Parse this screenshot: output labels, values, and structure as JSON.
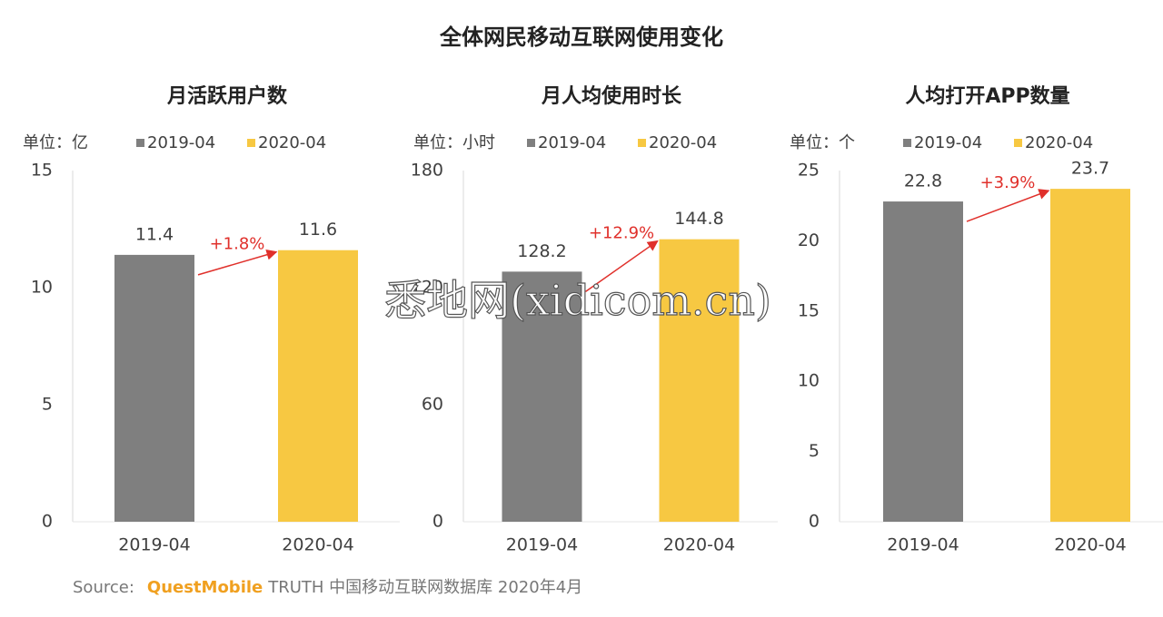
{
  "title": "全体网民移动互联网使用变化",
  "chart_data": [
    {
      "type": "bar",
      "title": "月活跃用户数",
      "unit": "单位：亿",
      "categories": [
        "2019-04",
        "2020-04"
      ],
      "series": [
        {
          "name": "2019-04",
          "color": "#7f7f7f",
          "values": [
            11.4,
            null
          ]
        },
        {
          "name": "2020-04",
          "color": "#f7c842",
          "values": [
            null,
            11.6
          ]
        }
      ],
      "ylim": [
        0,
        15
      ],
      "yticks": [
        0,
        5,
        10,
        15
      ],
      "grid": false,
      "annotations": [
        {
          "text": "+1.8%",
          "color": "#e0302b"
        }
      ]
    },
    {
      "type": "bar",
      "title": "月人均使用时长",
      "unit": "单位：小时",
      "categories": [
        "2019-04",
        "2020-04"
      ],
      "series": [
        {
          "name": "2019-04",
          "color": "#7f7f7f",
          "values": [
            128.2,
            null
          ]
        },
        {
          "name": "2020-04",
          "color": "#f7c842",
          "values": [
            null,
            144.8
          ]
        }
      ],
      "ylim": [
        0,
        180
      ],
      "yticks": [
        0,
        60,
        120,
        180
      ],
      "grid": false,
      "annotations": [
        {
          "text": "+12.9%",
          "color": "#e0302b"
        }
      ]
    },
    {
      "type": "bar",
      "title": "人均打开APP数量",
      "unit": "单位：个",
      "categories": [
        "2019-04",
        "2020-04"
      ],
      "series": [
        {
          "name": "2019-04",
          "color": "#7f7f7f",
          "values": [
            22.8,
            null
          ]
        },
        {
          "name": "2020-04",
          "color": "#f7c842",
          "values": [
            null,
            23.7
          ]
        }
      ],
      "ylim": [
        0,
        25
      ],
      "yticks": [
        0,
        5,
        10,
        15,
        20,
        25
      ],
      "grid": false,
      "annotations": [
        {
          "text": "+3.9%",
          "color": "#e0302b"
        }
      ]
    }
  ],
  "source": {
    "label": "Source:",
    "brand": "QuestMobile",
    "text": "TRUTH 中国移动互联网数据库 2020年4月"
  },
  "watermark": "悉地网(xidicom.cn)"
}
